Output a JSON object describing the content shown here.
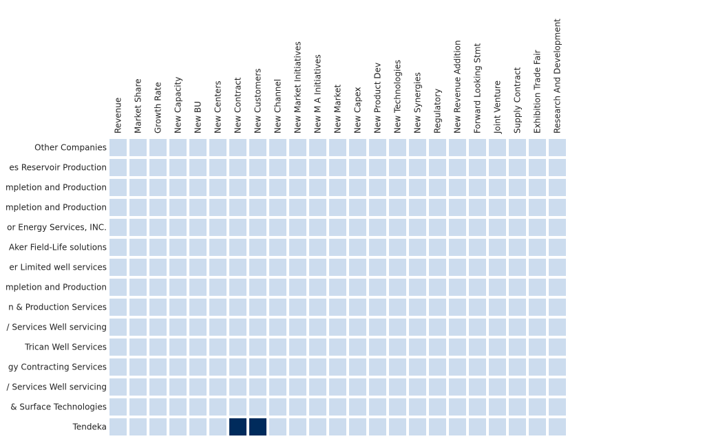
{
  "chart_data": {
    "type": "heatmap",
    "x_categories": [
      "Revenue",
      "Market Share",
      "Growth Rate",
      "New Capacity",
      "New BU",
      "New Centers",
      "New Contract",
      "New Customers",
      "New Channel",
      "New Market Initiatives",
      "New M A Initiatives",
      "New Market",
      "New Capex",
      "New Product Dev",
      "New Technologies",
      "New Synergies",
      "Regulatory",
      "New Revenue Addition",
      "Forward Looking Stmt",
      "Joint Venture",
      "Supply Contract",
      "Exhibition Trade Fair",
      "Research And Development"
    ],
    "y_categories": [
      "Other Companies",
      "es Reservoir Production",
      "mpletion and Production",
      "mpletion and Production",
      "or Energy Services, INC.",
      "Aker Field-Life solutions",
      "er Limited well services",
      "mpletion and Production",
      "n & Production Services",
      "/ Services Well servicing",
      "Trican Well Services",
      "gy Contracting Services",
      "/ Services Well servicing",
      "& Surface Technologies",
      "Tendeka"
    ],
    "highlighted_cells": [
      {
        "row": "Tendeka",
        "column": "New Contract",
        "value": 1
      },
      {
        "row": "Tendeka",
        "column": "New Customers",
        "value": 1
      }
    ],
    "default_value": 0,
    "colors": {
      "low": "#ccdcee",
      "high": "#002b5c"
    }
  }
}
